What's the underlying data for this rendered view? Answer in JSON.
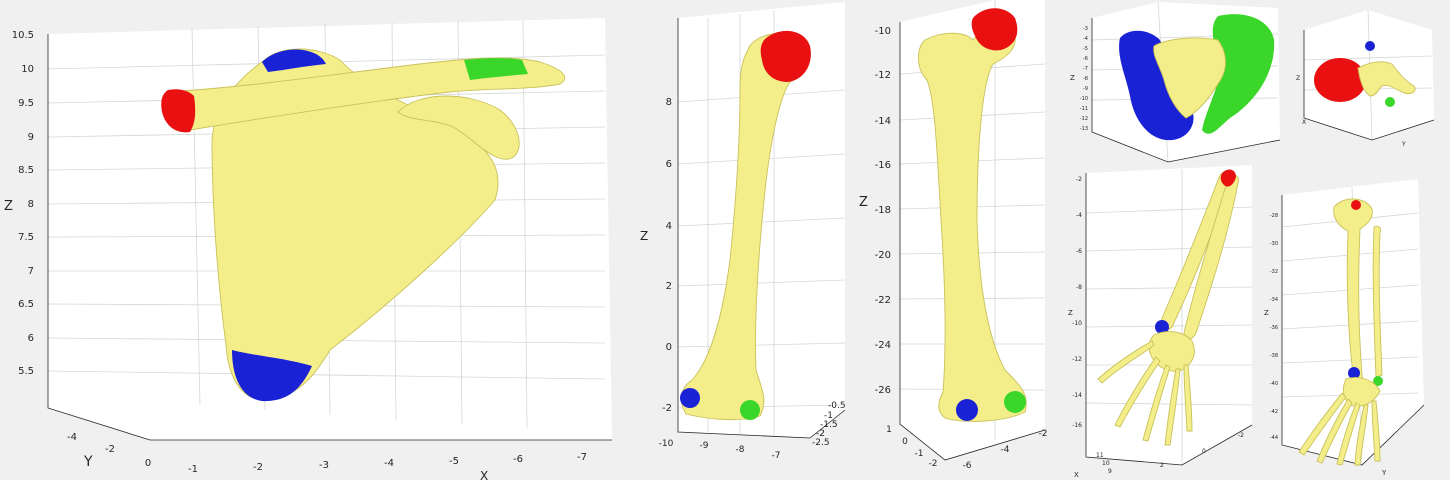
{
  "colors": {
    "bone": "#f4ee8a",
    "red_landmark": "#e81010",
    "blue_landmark": "#1a22d6",
    "green_landmark": "#3bd62a",
    "background": "#f0f0f0",
    "axes_background": "#ffffff"
  },
  "panels": [
    {
      "id": "scapula-clavicle",
      "zlabel": "Z",
      "ylabel": "Y",
      "xlabel": "X",
      "z_ticks": [
        "10.5",
        "10",
        "9.5",
        "9",
        "8.5",
        "8",
        "7.5",
        "7",
        "6.5",
        "6",
        "5.5"
      ],
      "y_ticks": [
        "-4",
        "-2",
        "0"
      ],
      "x_ticks": [
        "-1",
        "-2",
        "-3",
        "-4",
        "-5",
        "-6",
        "-7"
      ]
    },
    {
      "id": "humerus",
      "zlabel": "Z",
      "z_ticks": [
        "8",
        "6",
        "4",
        "2",
        "0",
        "-2"
      ],
      "x_ticks": [
        "-10",
        "-9",
        "-8",
        "-7"
      ],
      "y_ticks": [
        "-0.5",
        "-1",
        "-1.5",
        "-2",
        "-2.5"
      ]
    },
    {
      "id": "femur",
      "zlabel": "Z",
      "z_ticks": [
        "-10",
        "-12",
        "-14",
        "-16",
        "-18",
        "-20",
        "-22",
        "-24",
        "-26"
      ],
      "x_ticks": [
        "1",
        "0",
        "-1",
        "-2"
      ],
      "y_ticks": [
        "-6",
        "-4",
        "-2"
      ]
    },
    {
      "id": "pelvis",
      "zlabel": "Z",
      "z_ticks": [
        "-3",
        "-4",
        "-5",
        "-6",
        "-7",
        "-8",
        "-9",
        "-10",
        "-11",
        "-12",
        "-13"
      ]
    },
    {
      "id": "vertebra",
      "zlabel": "Z",
      "xlabel": "X",
      "ylabel": "Y"
    },
    {
      "id": "forearm-hand",
      "zlabel": "Z",
      "xlabel": "X",
      "z_ticks": [
        "-2",
        "-4",
        "-6",
        "-8",
        "-10",
        "-12",
        "-14",
        "-16"
      ],
      "x_ticks": [
        "11",
        "10",
        "9"
      ],
      "y_ticks": [
        "2",
        "0",
        "-2"
      ]
    },
    {
      "id": "leg-foot",
      "zlabel": "Z",
      "ylabel": "Y",
      "z_ticks": [
        "-28",
        "-30",
        "-32",
        "-34",
        "-36",
        "-38",
        "-40",
        "-42",
        "-44"
      ]
    }
  ]
}
